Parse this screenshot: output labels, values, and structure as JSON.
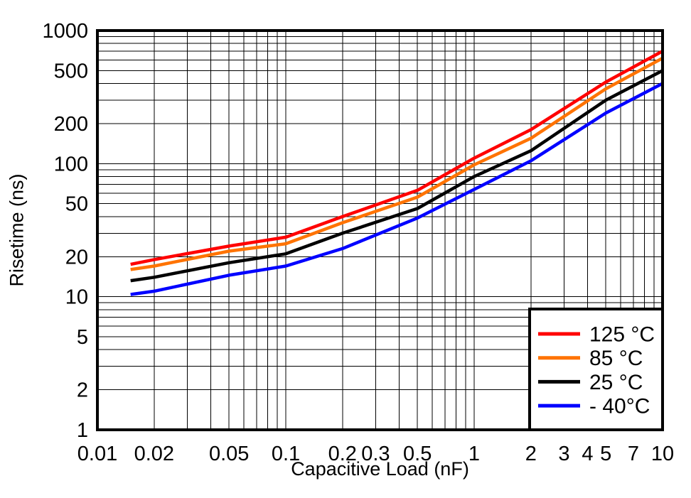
{
  "page": {
    "background": "#ffffff"
  },
  "chart_data": {
    "type": "line",
    "title": "",
    "xlabel": "Capacitive Load (nF)",
    "ylabel": "Risetime (ns)",
    "x_scale": "log",
    "y_scale": "log",
    "xlim": [
      0.01,
      10
    ],
    "ylim": [
      1,
      1000
    ],
    "grid": {
      "minor_log_grid": true,
      "color": "#000000"
    },
    "frame_color": "#000000",
    "x_ticks": [
      {
        "value": 0.01,
        "label": "0.01"
      },
      {
        "value": 0.02,
        "label": "0.02"
      },
      {
        "value": 0.05,
        "label": "0.05"
      },
      {
        "value": 0.1,
        "label": "0.1"
      },
      {
        "value": 0.2,
        "label": "0.2"
      },
      {
        "value": 0.3,
        "label": "0.3"
      },
      {
        "value": 0.5,
        "label": "0.5"
      },
      {
        "value": 1,
        "label": "1"
      },
      {
        "value": 2,
        "label": "2"
      },
      {
        "value": 3,
        "label": "3"
      },
      {
        "value": 4,
        "label": "4"
      },
      {
        "value": 5,
        "label": "5"
      },
      {
        "value": 7,
        "label": "7"
      },
      {
        "value": 10,
        "label": "10"
      }
    ],
    "y_ticks": [
      {
        "value": 1000,
        "label": "1000"
      },
      {
        "value": 500,
        "label": "500"
      },
      {
        "value": 200,
        "label": "200"
      },
      {
        "value": 100,
        "label": "100"
      },
      {
        "value": 50,
        "label": "50"
      },
      {
        "value": 20,
        "label": "20"
      },
      {
        "value": 10,
        "label": "10"
      },
      {
        "value": 5,
        "label": "5"
      },
      {
        "value": 2,
        "label": "2"
      },
      {
        "value": 1,
        "label": "1"
      }
    ],
    "x": [
      0.015,
      0.02,
      0.05,
      0.1,
      0.2,
      0.5,
      1,
      2,
      5,
      10
    ],
    "series": [
      {
        "name": "125 °C",
        "color": "#ff0000",
        "values": [
          17.5,
          19,
          24,
          28,
          40,
          63,
          110,
          180,
          410,
          700
        ]
      },
      {
        "name": "85 °C",
        "color": "#ff7300",
        "values": [
          16,
          17,
          22,
          25,
          36,
          56,
          98,
          155,
          365,
          620
        ]
      },
      {
        "name": "25 °C",
        "color": "#000000",
        "values": [
          13.2,
          14,
          18,
          21,
          30,
          46,
          80,
          125,
          300,
          500
        ]
      },
      {
        "name": "- 40°C",
        "color": "#0000ff",
        "values": [
          10.4,
          11,
          14.5,
          17,
          23,
          39,
          64,
          105,
          240,
          400
        ]
      }
    ],
    "legend": {
      "position": "bottom-right",
      "entries": [
        "125 °C",
        "85 °C",
        "25 °C",
        "- 40°C"
      ]
    }
  }
}
